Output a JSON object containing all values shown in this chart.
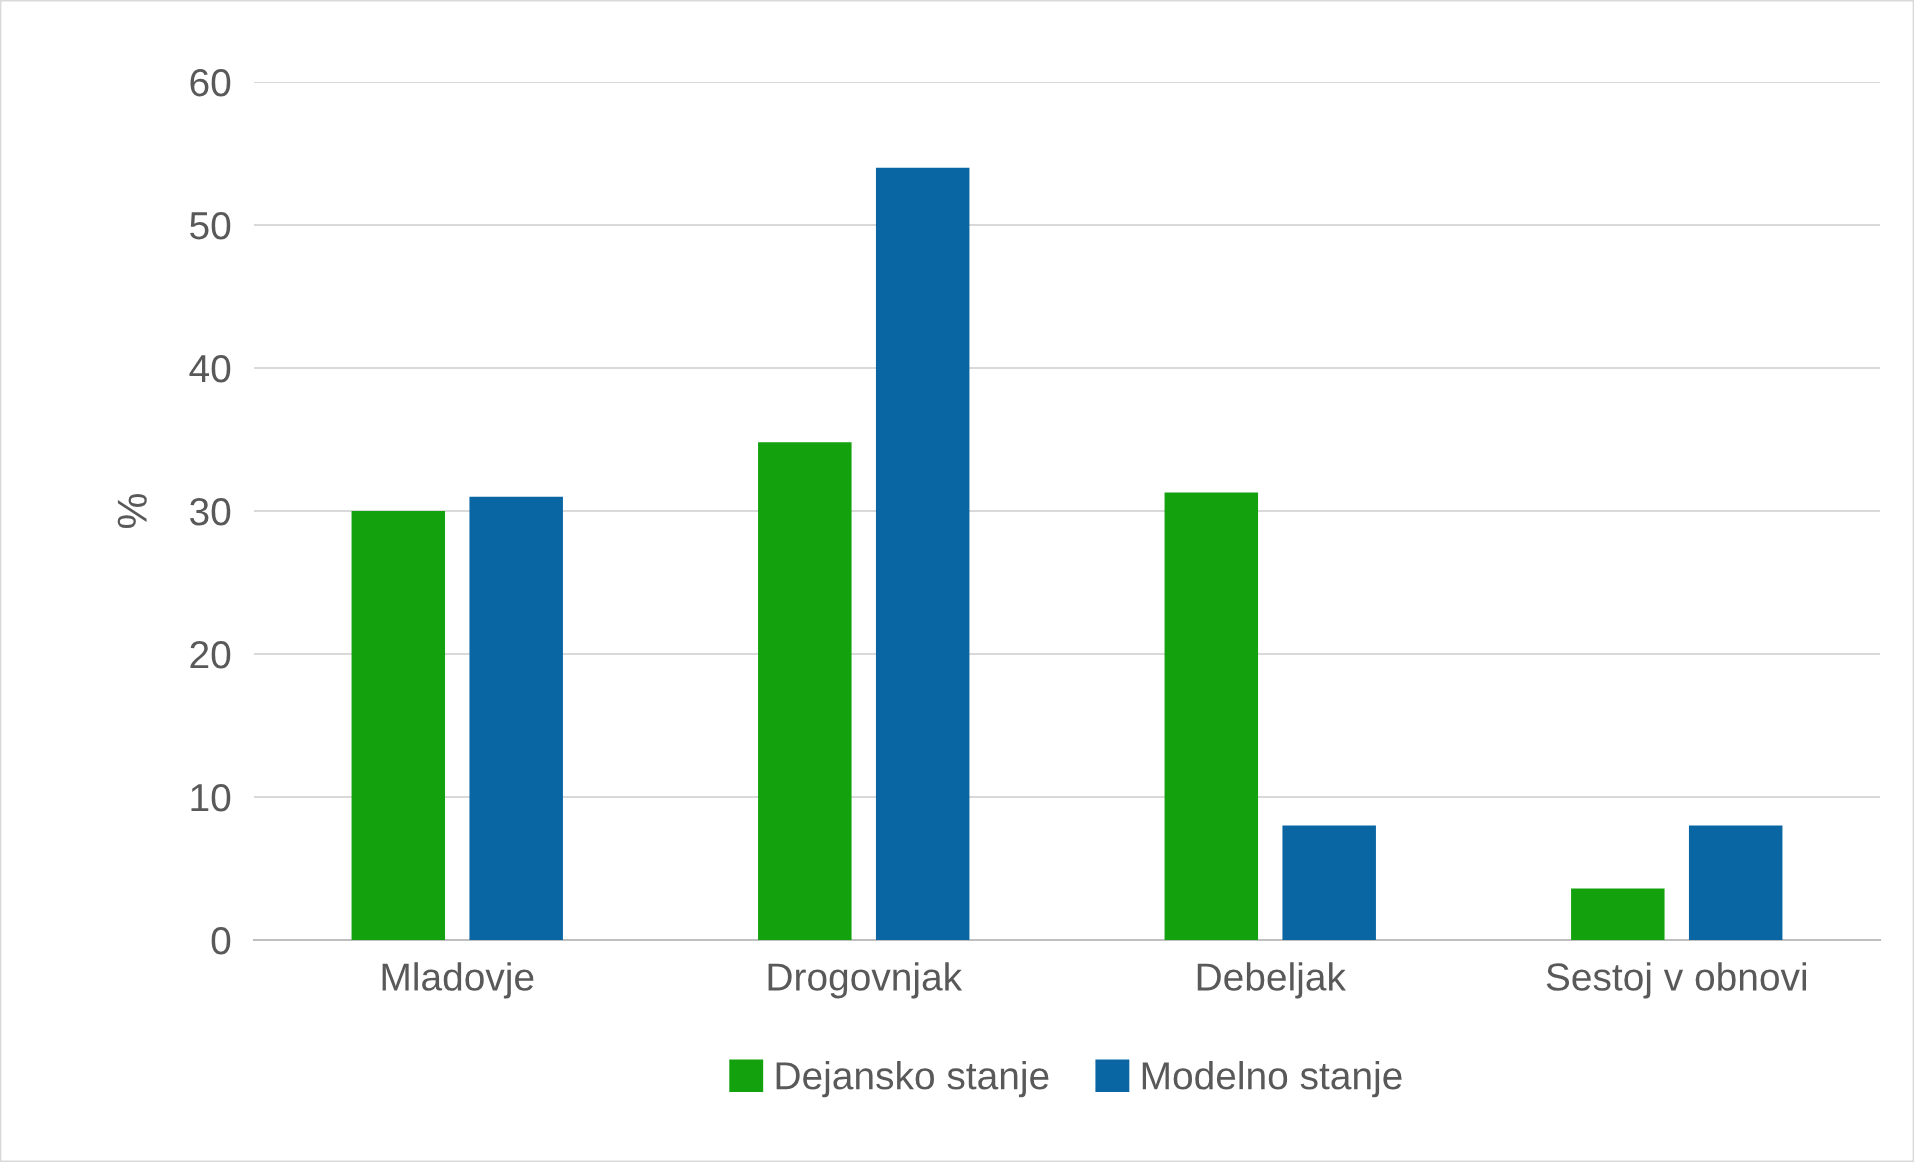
{
  "chart_data": {
    "type": "bar",
    "ylabel": "%",
    "categories": [
      "Mladovje",
      "Drogovnjak",
      "Debeljak",
      "Sestoj v obnovi"
    ],
    "series": [
      {
        "name": "Dejansko stanje",
        "color": "#13a10e",
        "values": [
          30,
          34.8,
          31.3,
          3.6
        ]
      },
      {
        "name": "Modelno stanje",
        "color": "#0a66a3",
        "values": [
          31,
          54,
          8,
          8
        ]
      }
    ],
    "ylim": [
      0,
      60
    ],
    "yticks": [
      0,
      10,
      20,
      30,
      40,
      50,
      60
    ],
    "grid": "y",
    "legend": "bottom"
  }
}
